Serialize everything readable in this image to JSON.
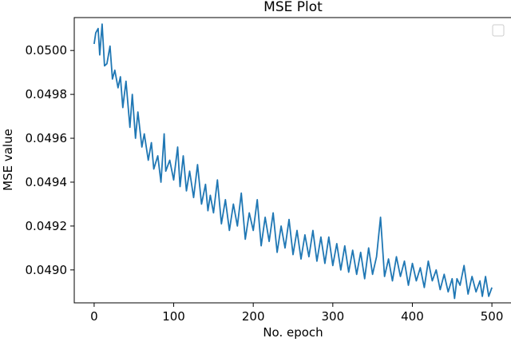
{
  "chart_data": {
    "type": "line",
    "title": "MSE Plot",
    "xlabel": "No. epoch",
    "ylabel": "MSE value",
    "xlim": [
      -25,
      525
    ],
    "ylim": [
      0.04885,
      0.05015
    ],
    "x_ticks": [
      0,
      100,
      200,
      300,
      400,
      500
    ],
    "x_tick_labels": [
      "0",
      "100",
      "200",
      "300",
      "400",
      "500"
    ],
    "y_ticks": [
      0.049,
      0.0492,
      0.0494,
      0.0496,
      0.0498,
      0.05
    ],
    "y_tick_labels": [
      "0.0490",
      "0.0492",
      "0.0494",
      "0.0496",
      "0.0498",
      "0.0500"
    ],
    "grid": false,
    "legend": {
      "placement": "top-right",
      "entries": []
    },
    "series": [
      {
        "color": "#1f77b4",
        "x": [
          0,
          2,
          5,
          7,
          10,
          13,
          16,
          20,
          23,
          26,
          30,
          33,
          36,
          40,
          45,
          48,
          52,
          55,
          60,
          63,
          68,
          72,
          75,
          80,
          84,
          88,
          90,
          95,
          100,
          105,
          108,
          112,
          116,
          120,
          125,
          130,
          135,
          140,
          143,
          146,
          150,
          155,
          160,
          165,
          170,
          175,
          180,
          185,
          190,
          195,
          200,
          205,
          210,
          215,
          220,
          225,
          230,
          235,
          240,
          245,
          250,
          255,
          260,
          265,
          270,
          275,
          280,
          285,
          290,
          295,
          300,
          305,
          310,
          315,
          320,
          325,
          330,
          335,
          340,
          345,
          350,
          355,
          360,
          365,
          370,
          375,
          380,
          385,
          390,
          395,
          400,
          405,
          410,
          415,
          420,
          425,
          430,
          435,
          440,
          445,
          450,
          453,
          456,
          460,
          465,
          470,
          475,
          480,
          485,
          488,
          492,
          496,
          500
        ],
        "y": [
          0.05003,
          0.05008,
          0.0501,
          0.04998,
          0.05012,
          0.04993,
          0.04994,
          0.05002,
          0.04987,
          0.04991,
          0.04983,
          0.04988,
          0.04974,
          0.04986,
          0.04965,
          0.0498,
          0.0496,
          0.04972,
          0.04956,
          0.04962,
          0.0495,
          0.04958,
          0.04946,
          0.04952,
          0.0494,
          0.04962,
          0.04945,
          0.0495,
          0.04941,
          0.04956,
          0.04938,
          0.04952,
          0.04936,
          0.04945,
          0.04933,
          0.04948,
          0.0493,
          0.04939,
          0.04927,
          0.04934,
          0.04926,
          0.04941,
          0.04921,
          0.04932,
          0.04918,
          0.0493,
          0.0492,
          0.04935,
          0.04914,
          0.04926,
          0.04918,
          0.04932,
          0.04911,
          0.04924,
          0.04913,
          0.04926,
          0.04908,
          0.0492,
          0.0491,
          0.04923,
          0.04907,
          0.04918,
          0.04905,
          0.04916,
          0.04906,
          0.04918,
          0.04904,
          0.04915,
          0.04903,
          0.04915,
          0.04902,
          0.04912,
          0.049,
          0.04911,
          0.04899,
          0.04909,
          0.04898,
          0.04908,
          0.04896,
          0.0491,
          0.04898,
          0.04906,
          0.04924,
          0.04897,
          0.04905,
          0.04895,
          0.04906,
          0.04897,
          0.04904,
          0.04893,
          0.04903,
          0.04895,
          0.04901,
          0.04892,
          0.04904,
          0.04895,
          0.049,
          0.04891,
          0.04898,
          0.0489,
          0.04896,
          0.04887,
          0.04896,
          0.04893,
          0.04902,
          0.04889,
          0.04897,
          0.0489,
          0.04895,
          0.04888,
          0.04897,
          0.04888,
          0.04892
        ]
      }
    ]
  }
}
